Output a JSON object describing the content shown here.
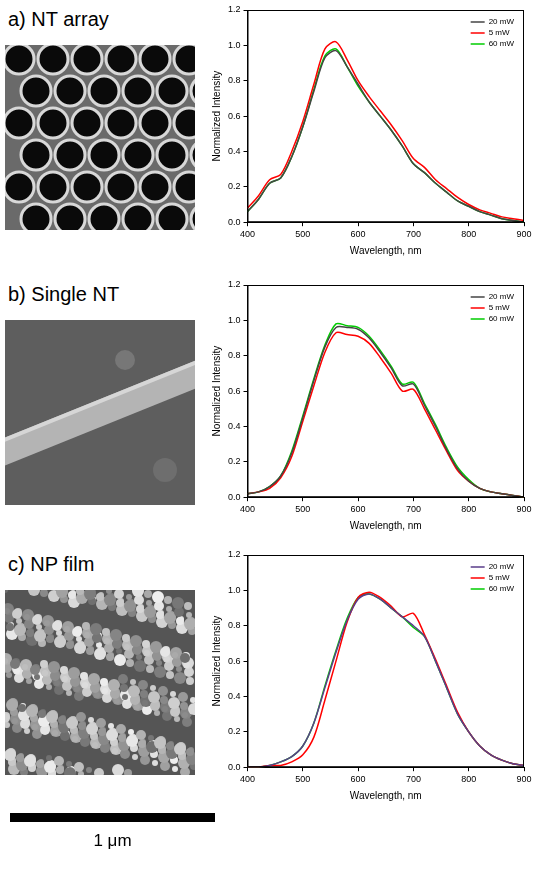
{
  "chart_data": [
    {
      "type": "line",
      "title": "a) NT array",
      "x_label": "Wavelength, nm",
      "y_label": "Normalized Intensity",
      "xlim": [
        400,
        900
      ],
      "xticks": [
        400,
        500,
        600,
        700,
        800,
        900
      ],
      "ylim": [
        0,
        1.2
      ],
      "yticks": [
        {
          "value": 0,
          "label": "0.0"
        },
        0.2,
        0.4,
        0.6,
        0.8,
        {
          "value": 1,
          "label": "1.0"
        },
        1.2
      ],
      "grid": false,
      "legend": "top-right",
      "x": [
        400,
        420,
        440,
        460,
        480,
        500,
        520,
        540,
        560,
        580,
        600,
        620,
        640,
        660,
        680,
        700,
        720,
        740,
        760,
        780,
        800,
        820,
        840,
        860,
        880,
        900
      ],
      "series": [
        {
          "name": "20 mW",
          "color": "#444444",
          "values": [
            0.06,
            0.13,
            0.22,
            0.25,
            0.37,
            0.54,
            0.74,
            0.93,
            0.97,
            0.88,
            0.78,
            0.68,
            0.6,
            0.52,
            0.43,
            0.33,
            0.28,
            0.22,
            0.17,
            0.12,
            0.09,
            0.06,
            0.04,
            0.02,
            0.01,
            0.0
          ]
        },
        {
          "name": "5 mW",
          "color": "#ff0000",
          "values": [
            0.08,
            0.15,
            0.24,
            0.27,
            0.4,
            0.57,
            0.78,
            0.98,
            1.02,
            0.92,
            0.8,
            0.71,
            0.63,
            0.55,
            0.46,
            0.36,
            0.31,
            0.24,
            0.19,
            0.14,
            0.1,
            0.07,
            0.05,
            0.03,
            0.02,
            0.01
          ]
        },
        {
          "name": "60 mW",
          "color": "#00cc00",
          "values": [
            0.06,
            0.13,
            0.22,
            0.25,
            0.37,
            0.54,
            0.75,
            0.94,
            0.98,
            0.88,
            0.77,
            0.68,
            0.6,
            0.52,
            0.43,
            0.33,
            0.28,
            0.22,
            0.17,
            0.12,
            0.09,
            0.06,
            0.04,
            0.02,
            0.01,
            0.0
          ]
        }
      ]
    },
    {
      "type": "line",
      "title": "b) Single NT",
      "x_label": "Wavelength, nm",
      "y_label": "Normalized Intensity",
      "xlim": [
        400,
        900
      ],
      "xticks": [
        400,
        500,
        600,
        700,
        800,
        900
      ],
      "ylim": [
        0,
        1.2
      ],
      "yticks": [
        {
          "value": 0,
          "label": "0.0"
        },
        0.2,
        0.4,
        0.6,
        0.8,
        {
          "value": 1,
          "label": "1.0"
        },
        1.2
      ],
      "grid": false,
      "legend": "top-right",
      "x": [
        400,
        420,
        440,
        460,
        480,
        500,
        520,
        540,
        560,
        580,
        600,
        620,
        640,
        660,
        680,
        700,
        720,
        740,
        760,
        780,
        800,
        820,
        840,
        860,
        880,
        900
      ],
      "series": [
        {
          "name": "20 mW",
          "color": "#444444",
          "values": [
            0.02,
            0.03,
            0.06,
            0.12,
            0.25,
            0.45,
            0.66,
            0.85,
            0.96,
            0.96,
            0.95,
            0.9,
            0.82,
            0.73,
            0.63,
            0.64,
            0.52,
            0.4,
            0.27,
            0.16,
            0.09,
            0.05,
            0.03,
            0.02,
            0.01,
            0.0
          ]
        },
        {
          "name": "5 mW",
          "color": "#ff0000",
          "values": [
            0.02,
            0.03,
            0.05,
            0.11,
            0.23,
            0.43,
            0.63,
            0.82,
            0.93,
            0.92,
            0.91,
            0.87,
            0.79,
            0.7,
            0.6,
            0.61,
            0.5,
            0.38,
            0.26,
            0.15,
            0.09,
            0.05,
            0.03,
            0.02,
            0.01,
            0.0
          ]
        },
        {
          "name": "60 mW",
          "color": "#00cc00",
          "values": [
            0.02,
            0.03,
            0.06,
            0.12,
            0.26,
            0.46,
            0.67,
            0.86,
            0.98,
            0.97,
            0.96,
            0.91,
            0.83,
            0.74,
            0.64,
            0.65,
            0.53,
            0.41,
            0.28,
            0.17,
            0.1,
            0.05,
            0.03,
            0.02,
            0.01,
            0.0
          ]
        }
      ]
    },
    {
      "type": "line",
      "title": "c) NP film",
      "x_label": "Wavelength, nm",
      "y_label": "Normalized Intensity",
      "xlim": [
        400,
        900
      ],
      "xticks": [
        400,
        500,
        600,
        700,
        800,
        900
      ],
      "ylim": [
        0,
        1.2
      ],
      "yticks": [
        {
          "value": 0,
          "label": "0.0"
        },
        0.2,
        0.4,
        0.6,
        0.8,
        {
          "value": 1,
          "label": "1.0"
        },
        1.2
      ],
      "grid": false,
      "legend": "top-right",
      "x": [
        400,
        420,
        440,
        460,
        480,
        500,
        520,
        540,
        560,
        580,
        600,
        620,
        640,
        660,
        680,
        700,
        720,
        740,
        760,
        780,
        800,
        820,
        840,
        860,
        880,
        900
      ],
      "series": [
        {
          "name": "20 mW",
          "color": "#5a3d8a",
          "values": [
            0.0,
            0.0,
            0.01,
            0.03,
            0.06,
            0.12,
            0.25,
            0.45,
            0.65,
            0.83,
            0.95,
            0.98,
            0.95,
            0.9,
            0.85,
            0.8,
            0.74,
            0.6,
            0.45,
            0.3,
            0.2,
            0.12,
            0.07,
            0.04,
            0.02,
            0.01
          ]
        },
        {
          "name": "5 mW",
          "color": "#ff0000",
          "values": [
            0.0,
            0.0,
            0.01,
            0.01,
            0.03,
            0.07,
            0.17,
            0.38,
            0.6,
            0.82,
            0.96,
            0.99,
            0.96,
            0.91,
            0.85,
            0.87,
            0.75,
            0.61,
            0.46,
            0.31,
            0.2,
            0.12,
            0.07,
            0.04,
            0.02,
            0.01
          ]
        },
        {
          "name": "60 mW",
          "color": "#00cc00",
          "values": [
            0.0,
            0.0,
            0.01,
            0.03,
            0.06,
            0.12,
            0.25,
            0.46,
            0.66,
            0.84,
            0.96,
            0.98,
            0.95,
            0.9,
            0.85,
            0.79,
            0.74,
            0.6,
            0.45,
            0.3,
            0.2,
            0.12,
            0.07,
            0.04,
            0.02,
            0.01
          ]
        }
      ]
    }
  ],
  "scale_bar": {
    "label": "1 μm"
  }
}
